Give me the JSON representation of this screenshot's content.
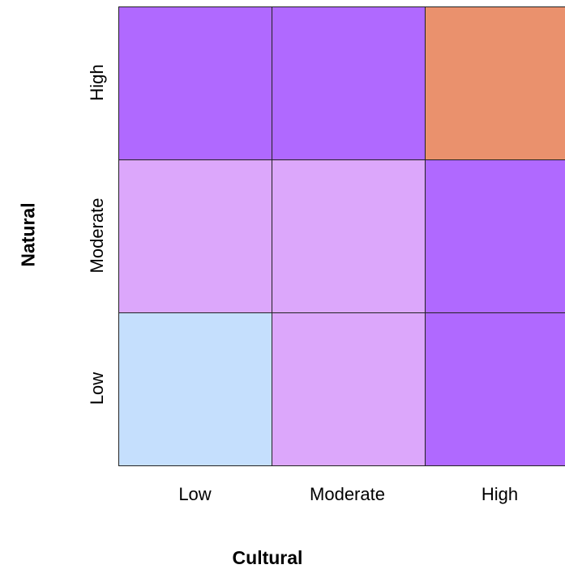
{
  "chart_data": {
    "type": "heatmap",
    "xlabel": "Cultural",
    "ylabel": "Natural",
    "x_categories": [
      "Low",
      "Moderate",
      "High"
    ],
    "y_categories_top_to_bottom": [
      "High",
      "Moderate",
      "Low"
    ],
    "cell_colors_top_to_bottom": [
      [
        "#b069ff",
        "#b069ff",
        "#ea916d"
      ],
      [
        "#dca7fb",
        "#dca7fb",
        "#b069ff"
      ],
      [
        "#c5dffd",
        "#dca7fb",
        "#b069ff"
      ]
    ],
    "grid": true,
    "legend": "none"
  }
}
